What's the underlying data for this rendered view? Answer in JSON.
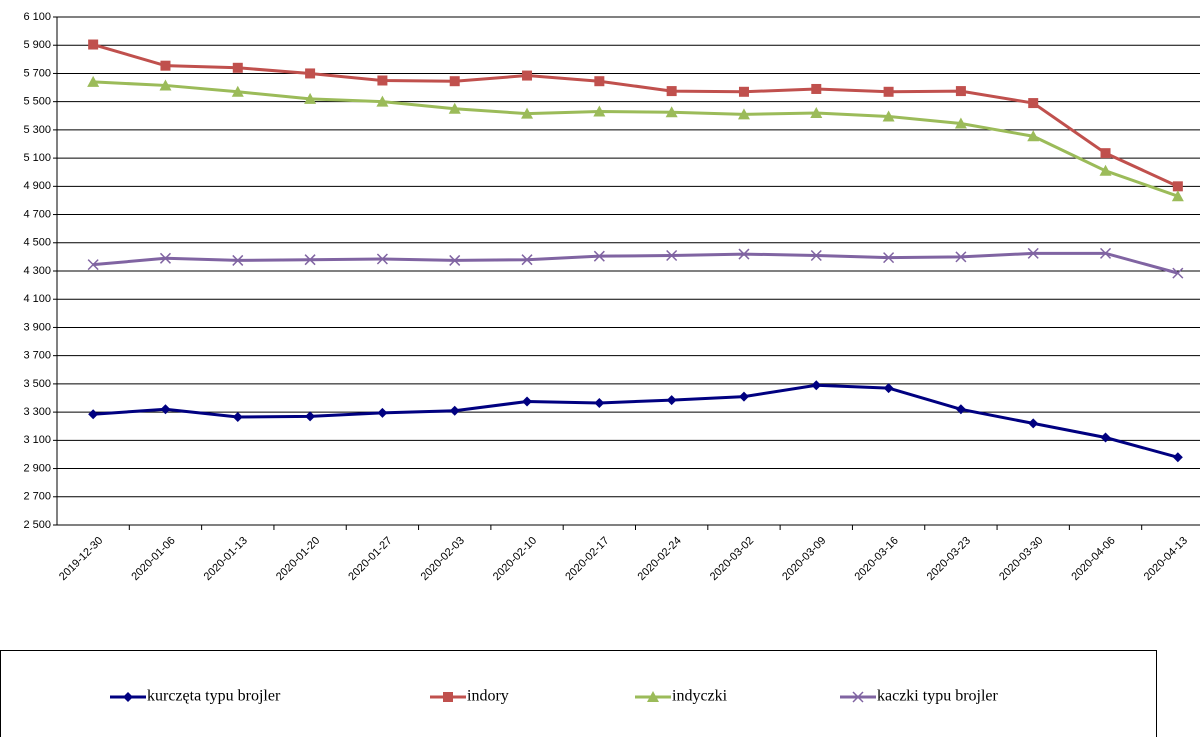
{
  "chart_data": {
    "type": "line",
    "categories": [
      "2019-12-30",
      "2020-01-06",
      "2020-01-13",
      "2020-01-20",
      "2020-01-27",
      "2020-02-03",
      "2020-02-10",
      "2020-02-17",
      "2020-02-24",
      "2020-03-02",
      "2020-03-09",
      "2020-03-16",
      "2020-03-23",
      "2020-03-30",
      "2020-04-06",
      "2020-04-13"
    ],
    "series": [
      {
        "name": "kurczęta typu brojler",
        "color": "#000080",
        "marker": "diamond",
        "values": [
          3285,
          3320,
          3265,
          3270,
          3295,
          3310,
          3375,
          3365,
          3385,
          3410,
          3490,
          3470,
          3320,
          3220,
          3120,
          2980
        ]
      },
      {
        "name": "indory",
        "color": "#c0504d",
        "marker": "square",
        "values": [
          5905,
          5755,
          5740,
          5700,
          5650,
          5645,
          5685,
          5645,
          5575,
          5570,
          5590,
          5570,
          5575,
          5490,
          5135,
          4900
        ]
      },
      {
        "name": "indyczki",
        "color": "#9bbb59",
        "marker": "triangle",
        "values": [
          5640,
          5615,
          5570,
          5520,
          5500,
          5450,
          5415,
          5430,
          5425,
          5410,
          5420,
          5395,
          5345,
          5255,
          5010,
          4830
        ]
      },
      {
        "name": "kaczki typu brojler",
        "color": "#8064a2",
        "marker": "x",
        "values": [
          4345,
          4390,
          4375,
          4380,
          4385,
          4375,
          4380,
          4405,
          4410,
          4420,
          4410,
          4395,
          4400,
          4425,
          4425,
          4285
        ]
      }
    ],
    "ylim": [
      2500,
      6100
    ],
    "yticks": [
      {
        "value": 2500,
        "label": "2 500"
      },
      {
        "value": 2700,
        "label": "2 700"
      },
      {
        "value": 2900,
        "label": "2 900"
      },
      {
        "value": 3100,
        "label": "3 100"
      },
      {
        "value": 3300,
        "label": "3 300"
      },
      {
        "value": 3500,
        "label": "3 500"
      },
      {
        "value": 3700,
        "label": "3 700"
      },
      {
        "value": 3900,
        "label": "3 900"
      },
      {
        "value": 4100,
        "label": "4 100"
      },
      {
        "value": 4300,
        "label": "4 300"
      },
      {
        "value": 4500,
        "label": "4 500"
      },
      {
        "value": 4700,
        "label": "4 700"
      },
      {
        "value": 4900,
        "label": "4 900"
      },
      {
        "value": 5100,
        "label": "5 100"
      },
      {
        "value": 5300,
        "label": "5 300"
      },
      {
        "value": 5500,
        "label": "5 500"
      },
      {
        "value": 5700,
        "label": "5 700"
      },
      {
        "value": 5900,
        "label": "5 900"
      },
      {
        "value": 6100,
        "label": "6 100"
      }
    ],
    "grid": true,
    "legend": "bottom"
  }
}
